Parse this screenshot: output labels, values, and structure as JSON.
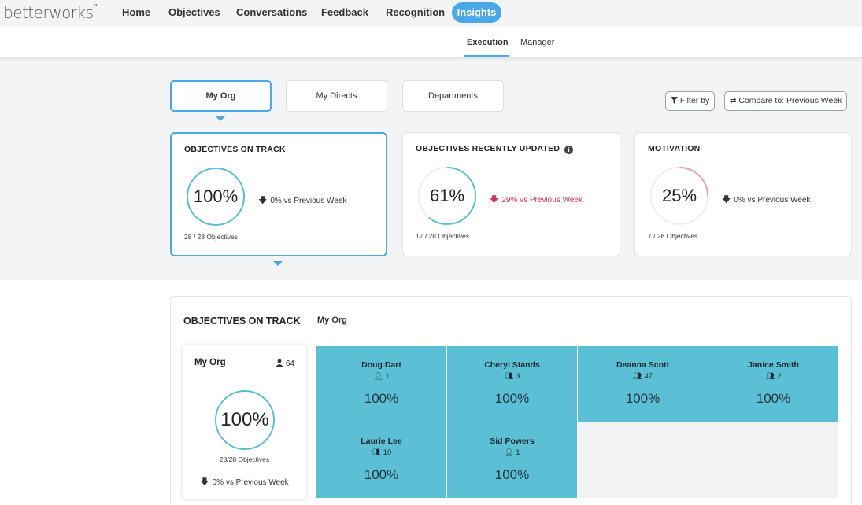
{
  "nav": {
    "logo": "betterworks",
    "logo_mark": "™",
    "items": [
      "Home",
      "Objectives",
      "Conversations",
      "Feedback",
      "Recognition"
    ],
    "active": "Insights"
  },
  "subnav": {
    "tabs": [
      "Execution",
      "Manager"
    ]
  },
  "tabs": [
    "My Org",
    "My Directs",
    "Departments"
  ],
  "filters": {
    "filter_label": "Filter by",
    "compare_label": "Compare to: Previous Week"
  },
  "metrics": [
    {
      "title": "OBJECTIVES ON TRACK",
      "value": "100%",
      "percent": 100,
      "color": "#5bbfd6",
      "delta": "0% vs Previous Week",
      "delta_direction": "down",
      "sub": "28 / 28 Objectives"
    },
    {
      "title": "OBJECTIVES RECENTLY UPDATED",
      "value": "61%",
      "percent": 61,
      "color": "#5bbfd6",
      "delta": "29% vs Previous Week",
      "delta_direction": "down-negative",
      "sub": "17 / 28 Objectives",
      "info_icon": "info-icon"
    },
    {
      "title": "MOTIVATION",
      "value": "25%",
      "percent": 25,
      "color": "#e8a0ae",
      "delta": "0% vs Previous Week",
      "delta_direction": "down",
      "sub": "7 / 28 Objectives"
    }
  ],
  "breakdown": {
    "title": "OBJECTIVES ON TRACK",
    "scope": "My Org",
    "org": {
      "name": "My Org",
      "count": "64",
      "value": "100%",
      "percent": 100,
      "sub": "28/28 Objectives",
      "delta": "0% vs Previous Week"
    },
    "people": [
      {
        "name": "Doug Dart",
        "count": "1",
        "value": "100%",
        "icon": "person-icon"
      },
      {
        "name": "Cheryl Stands",
        "count": "3",
        "value": "100%",
        "icon": "people-icon"
      },
      {
        "name": "Deanna Scott",
        "count": "47",
        "value": "100%",
        "icon": "people-icon"
      },
      {
        "name": "Janice Smith",
        "count": "2",
        "value": "100%",
        "icon": "people-icon"
      },
      {
        "name": "Laurie Lee",
        "count": "10",
        "value": "100%",
        "icon": "people-icon"
      },
      {
        "name": "Sid Powers",
        "count": "1",
        "value": "100%",
        "icon": "person-icon"
      }
    ]
  },
  "colors": {
    "accent": "#4aa8e8",
    "tile": "#5bbfd6",
    "negative": "#d4344f"
  }
}
